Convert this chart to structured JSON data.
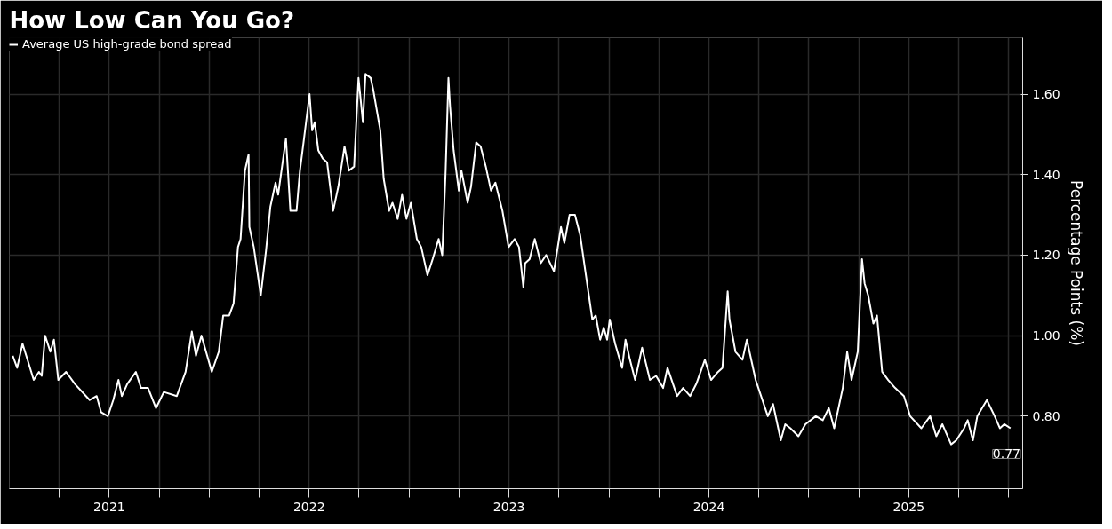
{
  "chart_data": {
    "type": "line",
    "title": "How Low Can You Go?",
    "ylabel": "Percentage Points (%)",
    "legend": "top left",
    "grid": true,
    "marker": "none",
    "line_style": "solid",
    "xlim": [
      2021.0,
      2026.07
    ],
    "ylim": [
      0.62,
      1.74
    ],
    "xticks": [
      {
        "value": 2021.25,
        "label": null
      },
      {
        "value": 2021.5,
        "label": "2021"
      },
      {
        "value": 2021.75,
        "label": null
      },
      {
        "value": 2022,
        "label": null
      },
      {
        "value": 2022.25,
        "label": null
      },
      {
        "value": 2022.5,
        "label": "2022"
      },
      {
        "value": 2022.75,
        "label": null
      },
      {
        "value": 2023,
        "label": null
      },
      {
        "value": 2023.25,
        "label": null
      },
      {
        "value": 2023.5,
        "label": "2023"
      },
      {
        "value": 2023.75,
        "label": null
      },
      {
        "value": 2024,
        "label": null
      },
      {
        "value": 2024.25,
        "label": null
      },
      {
        "value": 2024.5,
        "label": "2024"
      },
      {
        "value": 2024.75,
        "label": null
      },
      {
        "value": 2025,
        "label": null
      },
      {
        "value": 2025.25,
        "label": null
      },
      {
        "value": 2025.5,
        "label": "2025"
      },
      {
        "value": 2025.75,
        "label": null
      },
      {
        "value": 2026,
        "label": null
      }
    ],
    "yticks": [
      {
        "value": 0.8,
        "label": "0.80"
      },
      {
        "value": 1.0,
        "label": "1.00"
      },
      {
        "value": 1.2,
        "label": "1.20"
      },
      {
        "value": 1.4,
        "label": "1.40"
      },
      {
        "value": 1.6,
        "label": "1.60"
      }
    ],
    "annotations": [
      {
        "text": "0.77",
        "x": 2026.009,
        "y": 0.77
      }
    ],
    "series": [
      {
        "name": "Average US high-grade bond spread",
        "color": "#ffffff",
        "x": [
          2021.017,
          2021.039,
          2021.066,
          2021.122,
          2021.148,
          2021.162,
          2021.179,
          2021.205,
          2021.223,
          2021.245,
          2021.284,
          2021.328,
          2021.402,
          2021.437,
          2021.459,
          2021.493,
          2021.52,
          2021.546,
          2021.563,
          2021.59,
          2021.633,
          2021.659,
          2021.694,
          2021.734,
          2021.773,
          2021.838,
          2021.882,
          2021.913,
          2021.934,
          2021.961,
          2022.013,
          2022.048,
          2022.07,
          2022.1,
          2022.122,
          2022.144,
          2022.157,
          2022.179,
          2022.197,
          2022.201,
          2022.223,
          2022.258,
          2022.284,
          2022.306,
          2022.332,
          2022.345,
          2022.384,
          2022.406,
          2022.437,
          2022.454,
          2022.472,
          2022.502,
          2022.515,
          2022.528,
          2022.546,
          2022.568,
          2022.59,
          2022.62,
          2022.646,
          2022.677,
          2022.699,
          2022.725,
          2022.747,
          2022.769,
          2022.782,
          2022.808,
          2022.821,
          2022.856,
          2022.873,
          2022.9,
          2022.917,
          2022.943,
          2022.965,
          2022.987,
          2023.009,
          2023.039,
          2023.061,
          2023.092,
          2023.118,
          2023.148,
          2023.166,
          2023.183,
          2023.197,
          2023.205,
          2023.223,
          2023.249,
          2023.262,
          2023.293,
          2023.31,
          2023.336,
          2023.358,
          2023.384,
          2023.41,
          2023.432,
          2023.467,
          2023.498,
          2023.528,
          2023.55,
          2023.572,
          2023.581,
          2023.603,
          2023.629,
          2023.659,
          2023.686,
          2023.725,
          2023.76,
          2023.777,
          2023.803,
          2023.83,
          2023.856,
          2023.882,
          2023.917,
          2023.934,
          2023.956,
          2023.974,
          2023.991,
          2024.004,
          2024.031,
          2024.066,
          2024.083,
          2024.105,
          2024.131,
          2024.166,
          2024.205,
          2024.236,
          2024.271,
          2024.293,
          2024.341,
          2024.371,
          2024.406,
          2024.437,
          2024.48,
          2024.511,
          2024.546,
          2024.568,
          2024.594,
          2024.603,
          2024.633,
          2024.668,
          2024.69,
          2024.734,
          2024.795,
          2024.821,
          2024.86,
          2024.882,
          2024.908,
          2024.948,
          2024.983,
          2025.035,
          2025.07,
          2025.1,
          2025.127,
          2025.17,
          2025.192,
          2025.214,
          2025.245,
          2025.266,
          2025.279,
          2025.297,
          2025.323,
          2025.341,
          2025.367,
          2025.397,
          2025.432,
          2025.476,
          2025.507,
          2025.563,
          2025.607,
          2025.638,
          2025.668,
          2025.712,
          2025.738,
          2025.777,
          2025.795,
          2025.821,
          2025.843,
          2025.891,
          2025.93,
          2025.956,
          2025.978,
          2026.009
        ],
        "values": [
          0.95,
          0.92,
          0.98,
          0.89,
          0.91,
          0.9,
          1.0,
          0.96,
          0.99,
          0.89,
          0.91,
          0.88,
          0.84,
          0.85,
          0.81,
          0.8,
          0.84,
          0.89,
          0.85,
          0.88,
          0.91,
          0.87,
          0.87,
          0.82,
          0.86,
          0.85,
          0.91,
          1.01,
          0.95,
          1.0,
          0.91,
          0.96,
          1.05,
          1.05,
          1.08,
          1.22,
          1.24,
          1.41,
          1.45,
          1.27,
          1.22,
          1.1,
          1.21,
          1.32,
          1.38,
          1.35,
          1.49,
          1.31,
          1.31,
          1.41,
          1.48,
          1.6,
          1.51,
          1.53,
          1.46,
          1.44,
          1.43,
          1.31,
          1.37,
          1.47,
          1.41,
          1.42,
          1.64,
          1.53,
          1.65,
          1.64,
          1.61,
          1.51,
          1.39,
          1.31,
          1.33,
          1.29,
          1.35,
          1.29,
          1.33,
          1.24,
          1.22,
          1.15,
          1.19,
          1.24,
          1.2,
          1.41,
          1.64,
          1.57,
          1.46,
          1.36,
          1.41,
          1.33,
          1.37,
          1.48,
          1.47,
          1.42,
          1.36,
          1.38,
          1.31,
          1.22,
          1.24,
          1.22,
          1.12,
          1.18,
          1.19,
          1.24,
          1.18,
          1.2,
          1.16,
          1.27,
          1.23,
          1.3,
          1.3,
          1.25,
          1.16,
          1.04,
          1.05,
          0.99,
          1.02,
          0.99,
          1.04,
          0.98,
          0.92,
          0.99,
          0.94,
          0.89,
          0.97,
          0.89,
          0.9,
          0.87,
          0.92,
          0.85,
          0.87,
          0.85,
          0.88,
          0.94,
          0.89,
          0.91,
          0.92,
          1.11,
          1.04,
          0.96,
          0.94,
          0.99,
          0.89,
          0.8,
          0.83,
          0.74,
          0.78,
          0.77,
          0.75,
          0.78,
          0.8,
          0.79,
          0.82,
          0.77,
          0.87,
          0.96,
          0.89,
          0.96,
          1.19,
          1.13,
          1.1,
          1.03,
          1.05,
          0.91,
          0.89,
          0.87,
          0.85,
          0.8,
          0.77,
          0.8,
          0.75,
          0.78,
          0.73,
          0.74,
          0.77,
          0.79,
          0.74,
          0.8,
          0.84,
          0.8,
          0.77,
          0.78,
          0.77
        ]
      }
    ]
  }
}
